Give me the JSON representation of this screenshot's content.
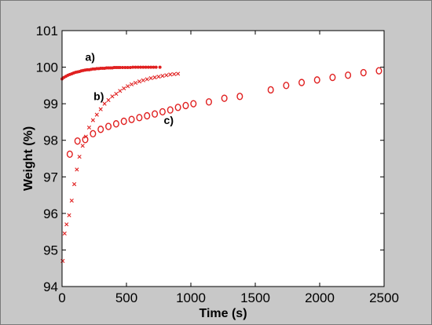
{
  "chart_data": {
    "type": "scatter",
    "title": "",
    "xlabel": "Time (s)",
    "ylabel": "Weight (%)",
    "xlim": [
      0,
      2500
    ],
    "ylim": [
      94,
      101
    ],
    "xticks": [
      0,
      500,
      1000,
      1500,
      2000,
      2500
    ],
    "yticks": [
      94,
      95,
      96,
      97,
      98,
      99,
      100,
      101
    ],
    "grid": false,
    "legend": "none",
    "colors": {
      "marker": "#e02020",
      "axes": "#000000",
      "frame": "#c8c8c8",
      "plot_bg": "#ffffff"
    },
    "series": [
      {
        "name": "a)",
        "marker": "dot",
        "x": [
          0,
          15,
          30,
          45,
          60,
          75,
          90,
          105,
          120,
          135,
          150,
          165,
          180,
          195,
          210,
          225,
          240,
          255,
          270,
          285,
          300,
          315,
          330,
          345,
          360,
          375,
          390,
          405,
          420,
          435,
          450,
          470,
          490,
          510,
          530,
          550,
          570,
          590,
          610,
          630,
          650,
          670,
          690,
          710,
          730,
          760
        ],
        "y": [
          99.68,
          99.72,
          99.75,
          99.78,
          99.8,
          99.82,
          99.84,
          99.86,
          99.87,
          99.88,
          99.9,
          99.91,
          99.92,
          99.93,
          99.93,
          99.94,
          99.95,
          99.95,
          99.96,
          99.96,
          99.97,
          99.97,
          99.97,
          99.98,
          99.98,
          99.98,
          99.98,
          99.99,
          99.99,
          99.99,
          99.99,
          99.99,
          99.99,
          99.99,
          99.99,
          100.0,
          100.0,
          100.0,
          100.0,
          100.0,
          100.0,
          100.0,
          100.0,
          100.0,
          100.0,
          100.0
        ]
      },
      {
        "name": "b)",
        "marker": "x",
        "x": [
          5,
          20,
          35,
          55,
          75,
          95,
          115,
          135,
          160,
          185,
          210,
          240,
          270,
          300,
          330,
          360,
          390,
          420,
          450,
          480,
          510,
          540,
          570,
          600,
          630,
          660,
          690,
          720,
          750,
          780,
          810,
          840,
          870,
          900
        ],
        "y": [
          94.7,
          95.45,
          95.7,
          95.95,
          96.35,
          96.8,
          97.2,
          97.55,
          97.85,
          98.1,
          98.35,
          98.55,
          98.7,
          98.85,
          99.0,
          99.1,
          99.2,
          99.27,
          99.35,
          99.42,
          99.48,
          99.53,
          99.57,
          99.61,
          99.64,
          99.67,
          99.7,
          99.72,
          99.74,
          99.76,
          99.78,
          99.8,
          99.81,
          99.82
        ]
      },
      {
        "name": "c)",
        "marker": "circle",
        "x": [
          60,
          120,
          180,
          240,
          300,
          360,
          420,
          480,
          540,
          600,
          660,
          720,
          780,
          840,
          900,
          960,
          1020,
          1140,
          1260,
          1380,
          1620,
          1740,
          1860,
          1980,
          2100,
          2220,
          2340,
          2460
        ],
        "y": [
          97.62,
          97.98,
          98.02,
          98.18,
          98.3,
          98.38,
          98.45,
          98.52,
          98.57,
          98.62,
          98.67,
          98.72,
          98.78,
          98.83,
          98.9,
          98.95,
          99.0,
          99.05,
          99.15,
          99.2,
          99.38,
          99.5,
          99.58,
          99.65,
          99.72,
          99.78,
          99.85,
          99.9
        ]
      }
    ],
    "annotations": [
      {
        "text": "a)",
        "x": 180,
        "y": 100.17
      },
      {
        "text": "b)",
        "x": 245,
        "y": 99.1
      },
      {
        "text": "c)",
        "x": 790,
        "y": 98.45
      }
    ]
  }
}
